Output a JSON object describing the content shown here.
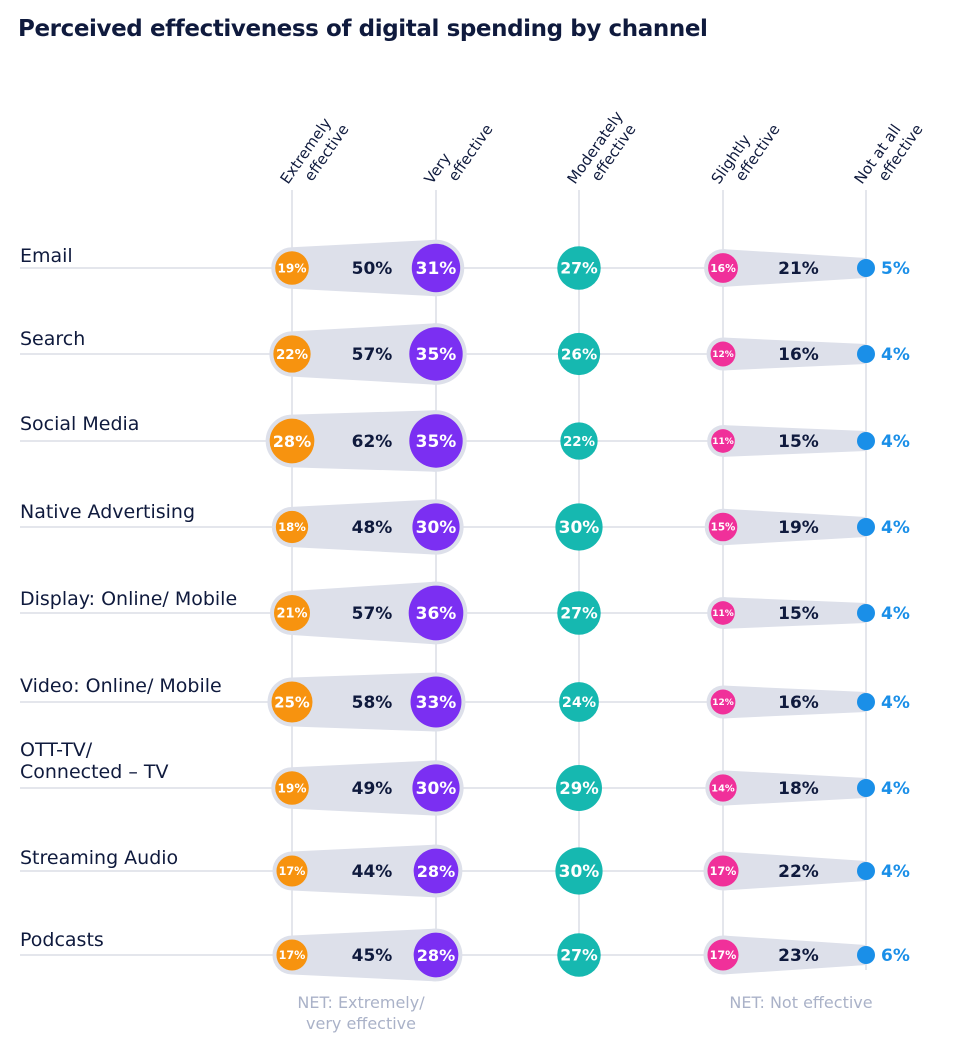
{
  "title": "Perceived effectiveness of digital spending by channel",
  "colors": {
    "extremely": "#f7930f",
    "very": "#7b2ff2",
    "moderately": "#16b8b0",
    "slightly": "#f0309a",
    "not_at_all": "#1a8fe8",
    "band": "#dde0ea",
    "text": "#0f1a3d",
    "footer": "#aab2c8"
  },
  "chart_data": {
    "type": "table",
    "title": "Perceived effectiveness of digital spending by channel",
    "columns": [
      [
        "Extremely",
        "effective"
      ],
      [
        "Very",
        "effective"
      ],
      [
        "Moderately",
        "effective"
      ],
      [
        "Slightly",
        "effective"
      ],
      [
        "Not at all",
        "effective"
      ]
    ],
    "categories": [
      [
        "Email"
      ],
      [
        "Search"
      ],
      [
        "Social Media"
      ],
      [
        "Native Advertising"
      ],
      [
        "Display: Online/ Mobile"
      ],
      [
        "Video: Online/ Mobile"
      ],
      [
        "OTT-TV/",
        "Connected – TV"
      ],
      [
        "Streaming Audio"
      ],
      [
        "Podcasts"
      ]
    ],
    "series": [
      {
        "name": "Extremely effective",
        "values": [
          19,
          22,
          28,
          18,
          21,
          25,
          19,
          17,
          17
        ]
      },
      {
        "name": "Very effective",
        "values": [
          31,
          35,
          35,
          30,
          36,
          33,
          30,
          28,
          28
        ]
      },
      {
        "name": "Moderately effective",
        "values": [
          27,
          26,
          22,
          30,
          27,
          24,
          29,
          30,
          27
        ]
      },
      {
        "name": "Slightly effective",
        "values": [
          16,
          12,
          11,
          15,
          11,
          12,
          14,
          17,
          17
        ]
      },
      {
        "name": "Not at all effective",
        "values": [
          5,
          4,
          4,
          4,
          4,
          4,
          4,
          4,
          6
        ]
      }
    ],
    "net_effective": {
      "label": [
        "NET: Extremely/",
        "very effective"
      ],
      "values": [
        50,
        57,
        62,
        48,
        57,
        58,
        49,
        44,
        45
      ]
    },
    "net_not_effective": {
      "label": [
        "NET: Not effective"
      ],
      "values": [
        21,
        16,
        15,
        19,
        15,
        16,
        18,
        22,
        23
      ]
    },
    "unit": "%"
  }
}
